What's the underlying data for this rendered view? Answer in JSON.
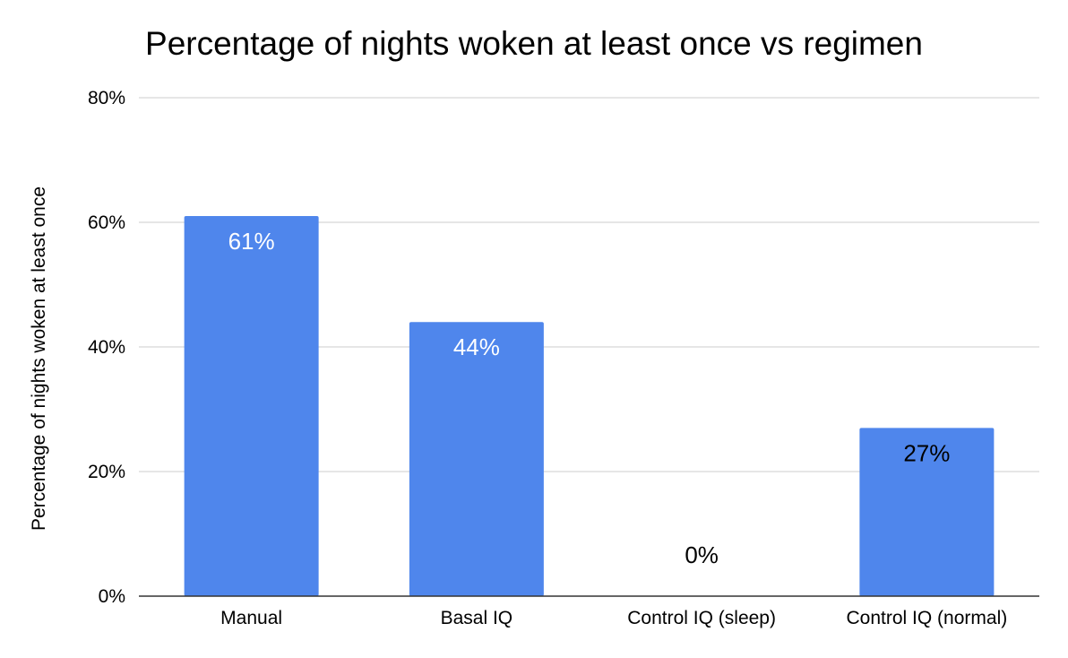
{
  "chart_data": {
    "type": "bar",
    "title": "Percentage of nights woken at least once vs regimen",
    "xlabel": "",
    "ylabel": "Percentage of nights woken at least once",
    "categories": [
      "Manual",
      "Basal IQ",
      "Control IQ (sleep)",
      "Control IQ (normal)"
    ],
    "values": [
      61,
      44,
      0,
      27
    ],
    "data_labels": [
      "61%",
      "44%",
      "0%",
      "27%"
    ],
    "ylim": [
      0,
      80
    ],
    "yticks": [
      0,
      20,
      40,
      60,
      80
    ],
    "ytick_labels": [
      "0%",
      "20%",
      "40%",
      "60%",
      "80%"
    ],
    "grid": true,
    "legend": "none",
    "bar_color": "#4f86ec",
    "inside_label_color": "#ffffff",
    "outside_label_color": "#000000",
    "gridline_color": "#cccccc",
    "axis_color": "#333333"
  }
}
